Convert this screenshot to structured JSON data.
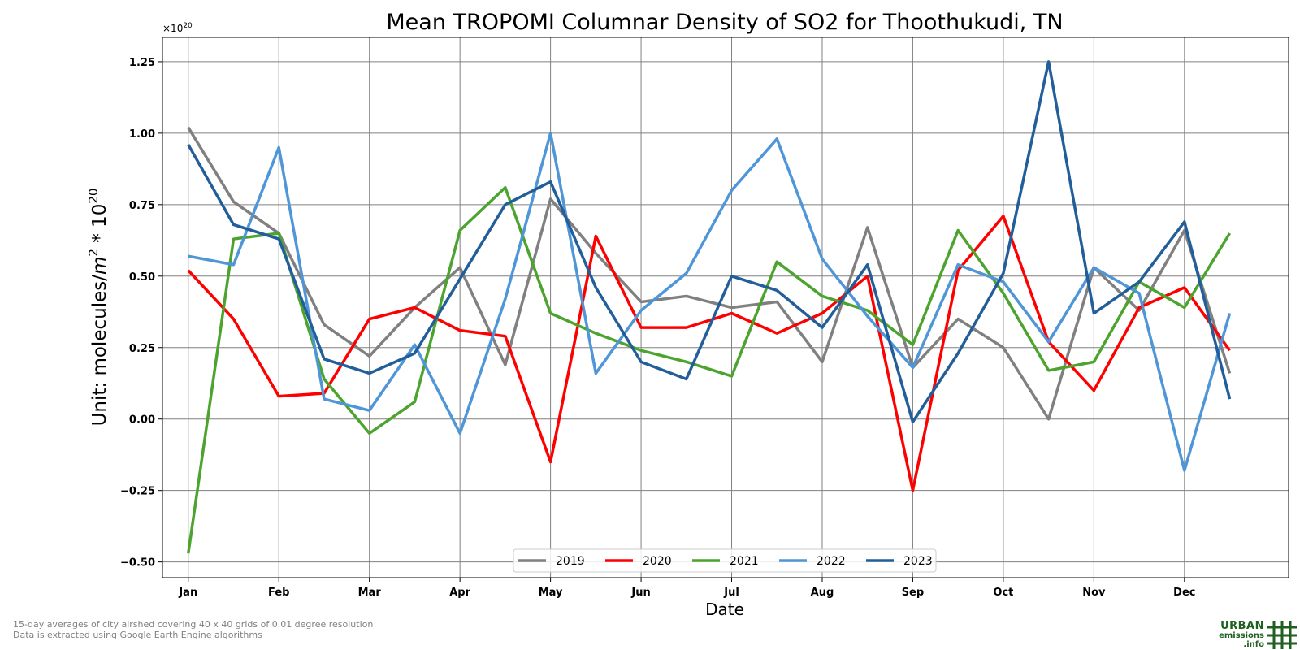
{
  "chart_data": {
    "type": "line",
    "title": "Mean TROPOMI Columnar Density of SO2 for Thoothukudi, TN",
    "xlabel": "Date",
    "ylabel_prefix": "Unit: molecules/",
    "ylabel_unit_base": "m",
    "ylabel_unit_exp": "2",
    "ylabel_mult": " * 10",
    "ylabel_mult_exp": "20",
    "offset_base": "×10",
    "offset_exp": "20",
    "x_tick_labels": [
      "Jan",
      "Feb",
      "Mar",
      "Apr",
      "May",
      "Jun",
      "Jul",
      "Aug",
      "Sep",
      "Oct",
      "Nov",
      "Dec"
    ],
    "y_ticks": [
      -0.5,
      -0.25,
      0.0,
      0.25,
      0.5,
      0.75,
      1.0,
      1.25
    ],
    "y_tick_labels": [
      "−0.50",
      "−0.25",
      "0.00",
      "0.25",
      "0.50",
      "0.75",
      "1.00",
      "1.25"
    ],
    "ylim": [
      -0.555,
      1.335
    ],
    "xlim": [
      -0.57,
      24.3
    ],
    "grid": true,
    "legend_position": "bottom-center",
    "series": [
      {
        "name": "2019",
        "color": "#808080",
        "values": [
          1.02,
          0.76,
          0.65,
          0.33,
          0.22,
          0.39,
          0.53,
          0.19,
          0.77,
          0.58,
          0.41,
          0.43,
          0.39,
          0.41,
          0.2,
          0.67,
          0.18,
          0.35,
          0.25,
          0.0,
          0.53,
          0.38,
          0.66,
          0.16
        ]
      },
      {
        "name": "2020",
        "color": "#ff0000",
        "values": [
          0.52,
          0.35,
          0.08,
          0.09,
          0.35,
          0.39,
          0.31,
          0.29,
          -0.15,
          0.64,
          0.32,
          0.32,
          0.37,
          0.3,
          0.37,
          0.5,
          -0.25,
          0.52,
          0.71,
          0.27,
          0.1,
          0.39,
          0.46,
          0.24
        ]
      },
      {
        "name": "2021",
        "color": "#4ca42f",
        "values": [
          -0.47,
          0.63,
          0.65,
          0.14,
          -0.05,
          0.06,
          0.66,
          0.81,
          0.37,
          0.3,
          0.24,
          0.2,
          0.15,
          0.55,
          0.43,
          0.38,
          0.26,
          0.66,
          0.44,
          0.17,
          0.2,
          0.48,
          0.39,
          0.65
        ]
      },
      {
        "name": "2022",
        "color": "#4f96d8",
        "values": [
          0.57,
          0.54,
          0.95,
          0.07,
          0.03,
          0.26,
          -0.05,
          0.42,
          1.0,
          0.16,
          0.38,
          0.51,
          0.8,
          0.98,
          0.56,
          0.36,
          0.18,
          0.54,
          0.48,
          0.27,
          0.53,
          0.44,
          -0.18,
          0.37
        ]
      },
      {
        "name": "2023",
        "color": "#225e99",
        "values": [
          0.96,
          0.68,
          0.63,
          0.21,
          0.16,
          0.23,
          0.49,
          0.75,
          0.83,
          0.46,
          0.2,
          0.14,
          0.5,
          0.45,
          0.32,
          0.54,
          -0.01,
          0.23,
          0.51,
          1.25,
          0.37,
          0.48,
          0.69,
          0.07
        ]
      }
    ]
  },
  "footnotes": {
    "line1": "15-day averages of city airshed covering 40 x 40 grids of 0.01 degree resolution",
    "line2": "Data is extracted using Google Earth Engine algorithms"
  },
  "logo": {
    "word1": "URBAN",
    "word2": "emissions",
    "word3": ".info",
    "color": "#1f5f1f"
  }
}
